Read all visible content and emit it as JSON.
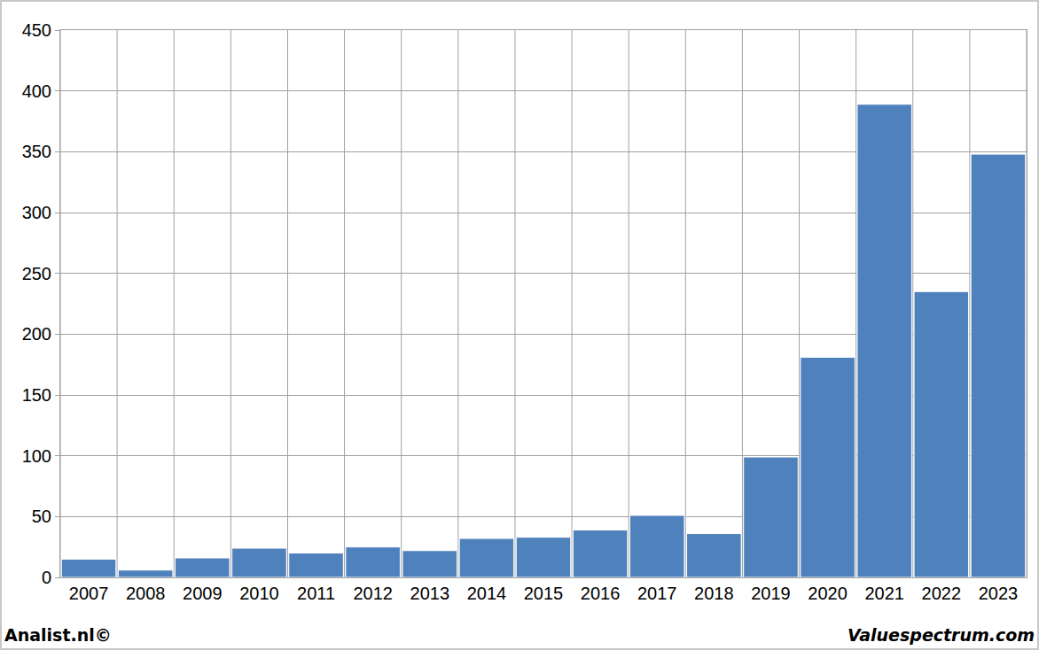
{
  "chart_data": {
    "type": "bar",
    "categories": [
      "2007",
      "2008",
      "2009",
      "2010",
      "2011",
      "2012",
      "2013",
      "2014",
      "2015",
      "2016",
      "2017",
      "2018",
      "2019",
      "2020",
      "2021",
      "2022",
      "2023"
    ],
    "values": [
      15,
      6,
      16,
      24,
      20,
      25,
      22,
      32,
      33,
      39,
      51,
      36,
      99,
      181,
      389,
      235,
      348
    ],
    "color": "#4f81bd",
    "ylim": [
      0,
      450
    ],
    "yticks": [
      0,
      50,
      100,
      150,
      200,
      250,
      300,
      350,
      400,
      450
    ],
    "grid": true,
    "annotations": [
      "Analist.nl©",
      "Valuespectrum.com"
    ]
  }
}
